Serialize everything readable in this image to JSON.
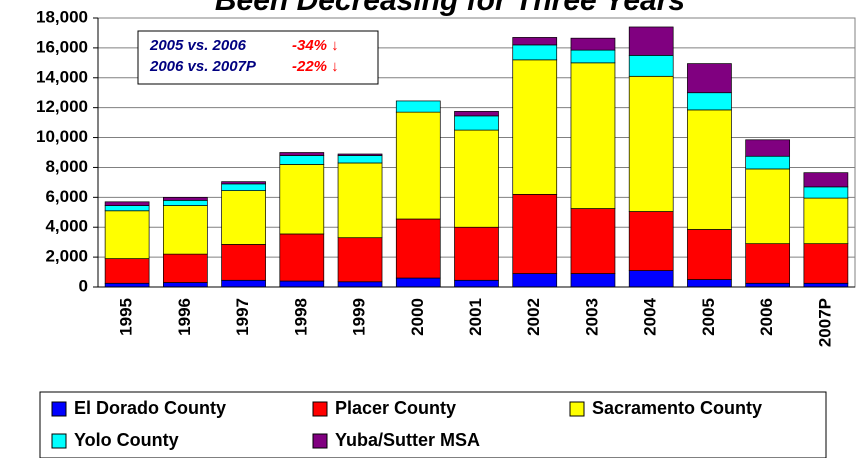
{
  "chart_data": {
    "type": "stacked-bar",
    "title": "Been Decreasing for Three Years",
    "categories": [
      "1995",
      "1996",
      "1997",
      "1998",
      "1999",
      "2000",
      "2001",
      "2002",
      "2003",
      "2004",
      "2005",
      "2006",
      "2007P"
    ],
    "series": [
      {
        "name": "El Dorado County",
        "color": "#0000ff",
        "values": [
          250,
          300,
          450,
          400,
          350,
          600,
          450,
          900,
          900,
          1100,
          500,
          250,
          250
        ]
      },
      {
        "name": "Placer County",
        "color": "#ff0000",
        "values": [
          1650,
          1900,
          2400,
          3150,
          2950,
          3950,
          3550,
          5300,
          4350,
          3950,
          3350,
          2650,
          2650
        ]
      },
      {
        "name": "Sacramento County",
        "color": "#ffff00",
        "values": [
          3200,
          3250,
          3600,
          4650,
          5000,
          7150,
          6500,
          9000,
          9750,
          9050,
          8000,
          5000,
          3050
        ]
      },
      {
        "name": "Yolo County",
        "color": "#00ffff",
        "values": [
          350,
          350,
          450,
          600,
          500,
          750,
          950,
          1000,
          850,
          1400,
          1150,
          850,
          750
        ]
      },
      {
        "name": "Yuba/Sutter MSA",
        "color": "#800080",
        "values": [
          250,
          200,
          150,
          200,
          100,
          0,
          300,
          500,
          800,
          1900,
          1950,
          1100,
          950
        ]
      }
    ],
    "ylim": [
      0,
      18000
    ],
    "yticks": [
      0,
      {
        "value": 2000,
        "label": "2,000"
      },
      {
        "value": 4000,
        "label": "4,000"
      },
      {
        "value": 6000,
        "label": "6,000"
      },
      {
        "value": 8000,
        "label": "8,000"
      },
      {
        "value": 10000,
        "label": "10,000"
      },
      {
        "value": 12000,
        "label": "12,000"
      },
      {
        "value": 14000,
        "label": "14,000"
      },
      {
        "value": 16000,
        "label": "16,000"
      },
      {
        "value": 18000,
        "label": "18,000"
      }
    ],
    "grid": true,
    "annotations": [
      {
        "label": "2005 vs. 2006",
        "change": "-34% ↓"
      },
      {
        "label": "2006 vs. 2007P",
        "change": "-22% ↓"
      }
    ]
  }
}
